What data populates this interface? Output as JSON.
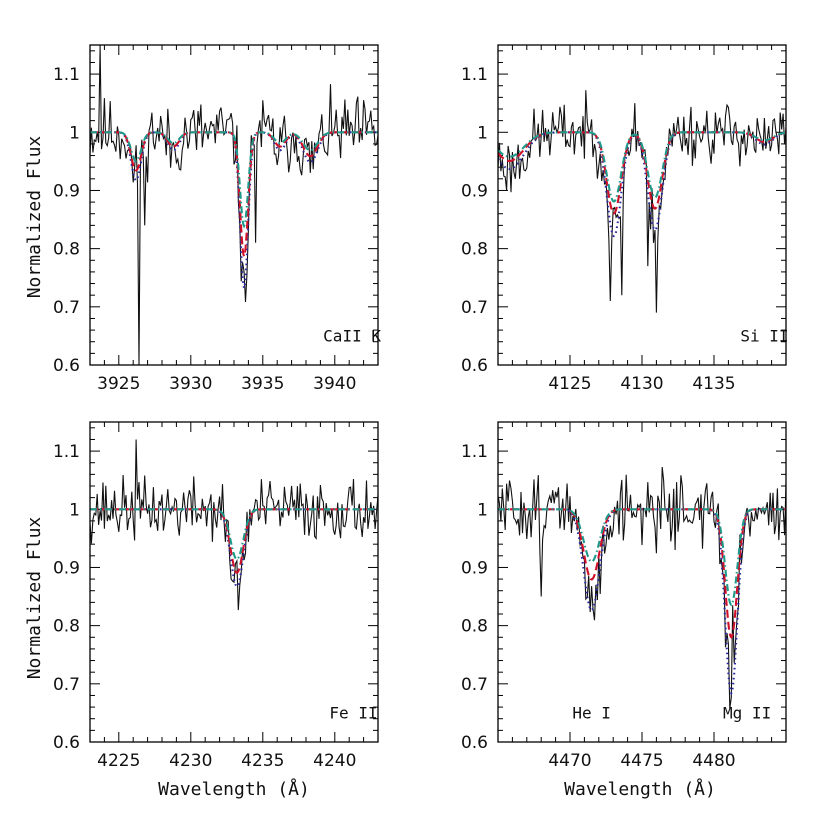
{
  "figure": {
    "ylabel": "Normalized Flux",
    "xlabel": "Wavelength (Å)"
  },
  "colors": {
    "observed": "#111111",
    "model_blue": "#2a2aa0",
    "model_red": "#d0102a",
    "model_green": "#1f9a8a"
  },
  "chart_data": [
    {
      "type": "line",
      "panel": "top-left",
      "xlim": [
        3923,
        3943
      ],
      "ylim": [
        0.6,
        1.15
      ],
      "xticks": [
        3925,
        3930,
        3935,
        3940
      ],
      "yticks": [
        0.6,
        0.7,
        0.8,
        0.9,
        1.0,
        1.1
      ],
      "ytick_labels": [
        "0.6",
        "0.7",
        "0.8",
        "0.9",
        "1",
        "1.1"
      ],
      "annotations": [
        {
          "text": "CaII K",
          "x": 3941.2,
          "y": 0.64
        }
      ],
      "lines": [
        {
          "center": 3926.2,
          "depth": 0.08,
          "width": 0.35
        },
        {
          "center": 3933.7,
          "depth": 0.26,
          "width": 0.28
        },
        {
          "center": 3936.2,
          "depth": 0.03,
          "width": 0.4
        },
        {
          "center": 3938.3,
          "depth": 0.05,
          "width": 0.5
        },
        {
          "center": 3928.8,
          "depth": 0.03,
          "width": 0.4
        }
      ],
      "noise": 0.045,
      "seed": 11,
      "spikes": [
        [
          3926.4,
          0.6
        ],
        [
          3923.7,
          1.15
        ],
        [
          3933.7,
          0.76
        ],
        [
          3934.5,
          0.81
        ],
        [
          3926.8,
          0.84
        ]
      ],
      "series": [
        {
          "name": "observed",
          "kind": "observed",
          "scale": 1.0
        },
        {
          "kind": "model",
          "style": "dotted",
          "color_key": "model_blue",
          "scale": 1.03
        },
        {
          "kind": "model",
          "style": "dashed",
          "color_key": "model_red",
          "scale": 0.82
        },
        {
          "kind": "model",
          "style": "dashdot",
          "color_key": "model_green",
          "scale": 0.62
        }
      ]
    },
    {
      "type": "line",
      "panel": "top-right",
      "xlim": [
        4120,
        4140
      ],
      "ylim": [
        0.6,
        1.15
      ],
      "xticks": [
        4125,
        4130,
        4135
      ],
      "yticks": [
        0.6,
        0.7,
        0.8,
        0.9,
        1.0,
        1.1
      ],
      "ytick_labels": [
        "0.6",
        "0.7",
        "0.8",
        "0.9",
        "1",
        "1.1"
      ],
      "annotations": [
        {
          "text": "Si II",
          "x": 4138.5,
          "y": 0.64
        }
      ],
      "lines": [
        {
          "center": 4128.05,
          "depth": 0.17,
          "width": 0.5
        },
        {
          "center": 4130.9,
          "depth": 0.16,
          "width": 0.5
        },
        {
          "center": 4120.8,
          "depth": 0.06,
          "width": 1.0
        },
        {
          "center": 4138.5,
          "depth": 0.02,
          "width": 0.6
        }
      ],
      "noise": 0.04,
      "seed": 23,
      "spikes": [
        [
          4127.8,
          0.71
        ],
        [
          4131.0,
          0.69
        ],
        [
          4128.6,
          0.72
        ],
        [
          4130.4,
          0.77
        ],
        [
          4129.5,
          1.05
        ]
      ],
      "series": [
        {
          "name": "observed",
          "kind": "observed",
          "scale": 1.0
        },
        {
          "kind": "model",
          "style": "dotted",
          "color_key": "model_blue",
          "scale": 1.05
        },
        {
          "kind": "model",
          "style": "dashed",
          "color_key": "model_red",
          "scale": 0.82
        },
        {
          "kind": "model",
          "style": "dashdot",
          "color_key": "model_green",
          "scale": 0.7
        }
      ]
    },
    {
      "type": "line",
      "panel": "bottom-left",
      "xlim": [
        4223,
        4243
      ],
      "ylim": [
        0.6,
        1.15
      ],
      "xticks": [
        4225,
        4230,
        4235,
        4240
      ],
      "yticks": [
        0.6,
        0.7,
        0.8,
        0.9,
        1.0,
        1.1
      ],
      "ytick_labels": [
        "0.6",
        "0.7",
        "0.8",
        "0.9",
        "1",
        "1.1"
      ],
      "xlabel_shown": true,
      "annotations": [
        {
          "text": "Fe II",
          "x": 4241.3,
          "y": 0.64
        }
      ],
      "lines": [
        {
          "center": 4233.2,
          "depth": 0.13,
          "width": 0.45
        }
      ],
      "noise": 0.04,
      "seed": 37,
      "spikes": [
        [
          4226.2,
          1.12
        ],
        [
          4233.4,
          0.87
        ],
        [
          4232.8,
          0.88
        ]
      ],
      "series": [
        {
          "name": "observed",
          "kind": "observed",
          "scale": 1.0
        },
        {
          "kind": "model",
          "style": "dotted",
          "color_key": "model_blue",
          "scale": 1.02
        },
        {
          "kind": "model",
          "style": "dashed",
          "color_key": "model_red",
          "scale": 0.84
        },
        {
          "kind": "model",
          "style": "dashdot",
          "color_key": "model_green",
          "scale": 0.66
        }
      ]
    },
    {
      "type": "line",
      "panel": "bottom-right",
      "xlim": [
        4465,
        4485
      ],
      "ylim": [
        0.6,
        1.15
      ],
      "xticks": [
        4470,
        4475,
        4480
      ],
      "yticks": [
        0.6,
        0.7,
        0.8,
        0.9,
        1.0,
        1.1
      ],
      "ytick_labels": [
        "0.6",
        "0.7",
        "0.8",
        "0.9",
        "1",
        "1.1"
      ],
      "xlabel_shown": true,
      "annotations": [
        {
          "text": "He I",
          "x": 4471.5,
          "y": 0.64
        },
        {
          "text": "Mg II",
          "x": 4482.3,
          "y": 0.64
        }
      ],
      "lines": [
        {
          "center": 4471.5,
          "depth": 0.17,
          "width": 0.55
        },
        {
          "center": 4481.2,
          "depth": 0.31,
          "width": 0.42
        }
      ],
      "noise": 0.045,
      "seed": 51,
      "spikes": [
        [
          4481.3,
          0.835
        ],
        [
          4471.8,
          0.87
        ],
        [
          4468.0,
          0.85
        ],
        [
          4476.5,
          1.05
        ]
      ],
      "series": [
        {
          "name": "observed",
          "kind": "observed",
          "scale": 1.0
        },
        {
          "kind": "model",
          "style": "dotted",
          "color_key": "model_blue",
          "scale": 1.02
        },
        {
          "kind": "model",
          "style": "dashed",
          "color_key": "model_red",
          "scale": 0.71
        },
        {
          "kind": "model",
          "style": "dashdot",
          "color_key": "model_green",
          "scale": 0.53
        }
      ]
    }
  ]
}
